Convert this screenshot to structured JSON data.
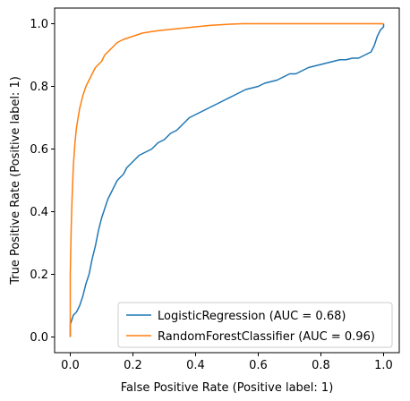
{
  "chart_data": {
    "type": "line",
    "title": "",
    "xlabel": "False Positive Rate (Positive label: 1)",
    "ylabel": "True Positive Rate (Positive label: 1)",
    "xlim": [
      -0.05,
      1.05
    ],
    "ylim": [
      -0.05,
      1.05
    ],
    "xticks": [
      0.0,
      0.2,
      0.4,
      0.6,
      0.8,
      1.0
    ],
    "yticks": [
      0.0,
      0.2,
      0.4,
      0.6,
      0.8,
      1.0
    ],
    "xtick_labels": [
      "0.0",
      "0.2",
      "0.4",
      "0.6",
      "0.8",
      "1.0"
    ],
    "ytick_labels": [
      "0.0",
      "0.2",
      "0.4",
      "0.6",
      "0.8",
      "1.0"
    ],
    "grid": false,
    "legend_position": "lower-right",
    "series": [
      {
        "name": "LogisticRegression (AUC = 0.68)",
        "color": "#1f77b4",
        "x": [
          0.0,
          0.0,
          0.01,
          0.02,
          0.03,
          0.04,
          0.05,
          0.06,
          0.07,
          0.08,
          0.09,
          0.1,
          0.11,
          0.12,
          0.13,
          0.14,
          0.15,
          0.16,
          0.17,
          0.18,
          0.19,
          0.2,
          0.22,
          0.24,
          0.26,
          0.28,
          0.3,
          0.32,
          0.34,
          0.36,
          0.38,
          0.4,
          0.42,
          0.44,
          0.46,
          0.48,
          0.5,
          0.52,
          0.54,
          0.56,
          0.58,
          0.6,
          0.62,
          0.64,
          0.66,
          0.68,
          0.7,
          0.72,
          0.74,
          0.76,
          0.78,
          0.8,
          0.82,
          0.84,
          0.86,
          0.88,
          0.9,
          0.92,
          0.94,
          0.96,
          0.97,
          0.98,
          0.99,
          1.0,
          1.0
        ],
        "y": [
          0.0,
          0.04,
          0.07,
          0.08,
          0.1,
          0.13,
          0.17,
          0.2,
          0.25,
          0.29,
          0.34,
          0.38,
          0.41,
          0.44,
          0.46,
          0.48,
          0.5,
          0.51,
          0.52,
          0.54,
          0.55,
          0.56,
          0.58,
          0.59,
          0.6,
          0.62,
          0.63,
          0.65,
          0.66,
          0.68,
          0.7,
          0.71,
          0.72,
          0.73,
          0.74,
          0.75,
          0.76,
          0.77,
          0.78,
          0.79,
          0.795,
          0.8,
          0.81,
          0.815,
          0.82,
          0.83,
          0.84,
          0.84,
          0.85,
          0.86,
          0.865,
          0.87,
          0.875,
          0.88,
          0.885,
          0.885,
          0.89,
          0.89,
          0.9,
          0.91,
          0.93,
          0.96,
          0.98,
          0.99,
          1.0
        ]
      },
      {
        "name": "RandomForestClassifier (AUC = 0.96)",
        "color": "#ff7f0e",
        "x": [
          0.0,
          0.0,
          0.003,
          0.006,
          0.01,
          0.015,
          0.02,
          0.025,
          0.03,
          0.04,
          0.05,
          0.06,
          0.07,
          0.08,
          0.09,
          0.1,
          0.11,
          0.12,
          0.13,
          0.15,
          0.17,
          0.2,
          0.23,
          0.26,
          0.3,
          0.35,
          0.4,
          0.45,
          0.5,
          0.55,
          0.6,
          0.7,
          0.8,
          0.9,
          1.0
        ],
        "y": [
          0.0,
          0.2,
          0.35,
          0.45,
          0.55,
          0.62,
          0.67,
          0.7,
          0.73,
          0.77,
          0.8,
          0.82,
          0.84,
          0.86,
          0.87,
          0.88,
          0.9,
          0.91,
          0.92,
          0.94,
          0.95,
          0.96,
          0.97,
          0.975,
          0.98,
          0.985,
          0.99,
          0.995,
          0.998,
          1.0,
          1.0,
          1.0,
          1.0,
          1.0,
          1.0
        ]
      }
    ]
  }
}
